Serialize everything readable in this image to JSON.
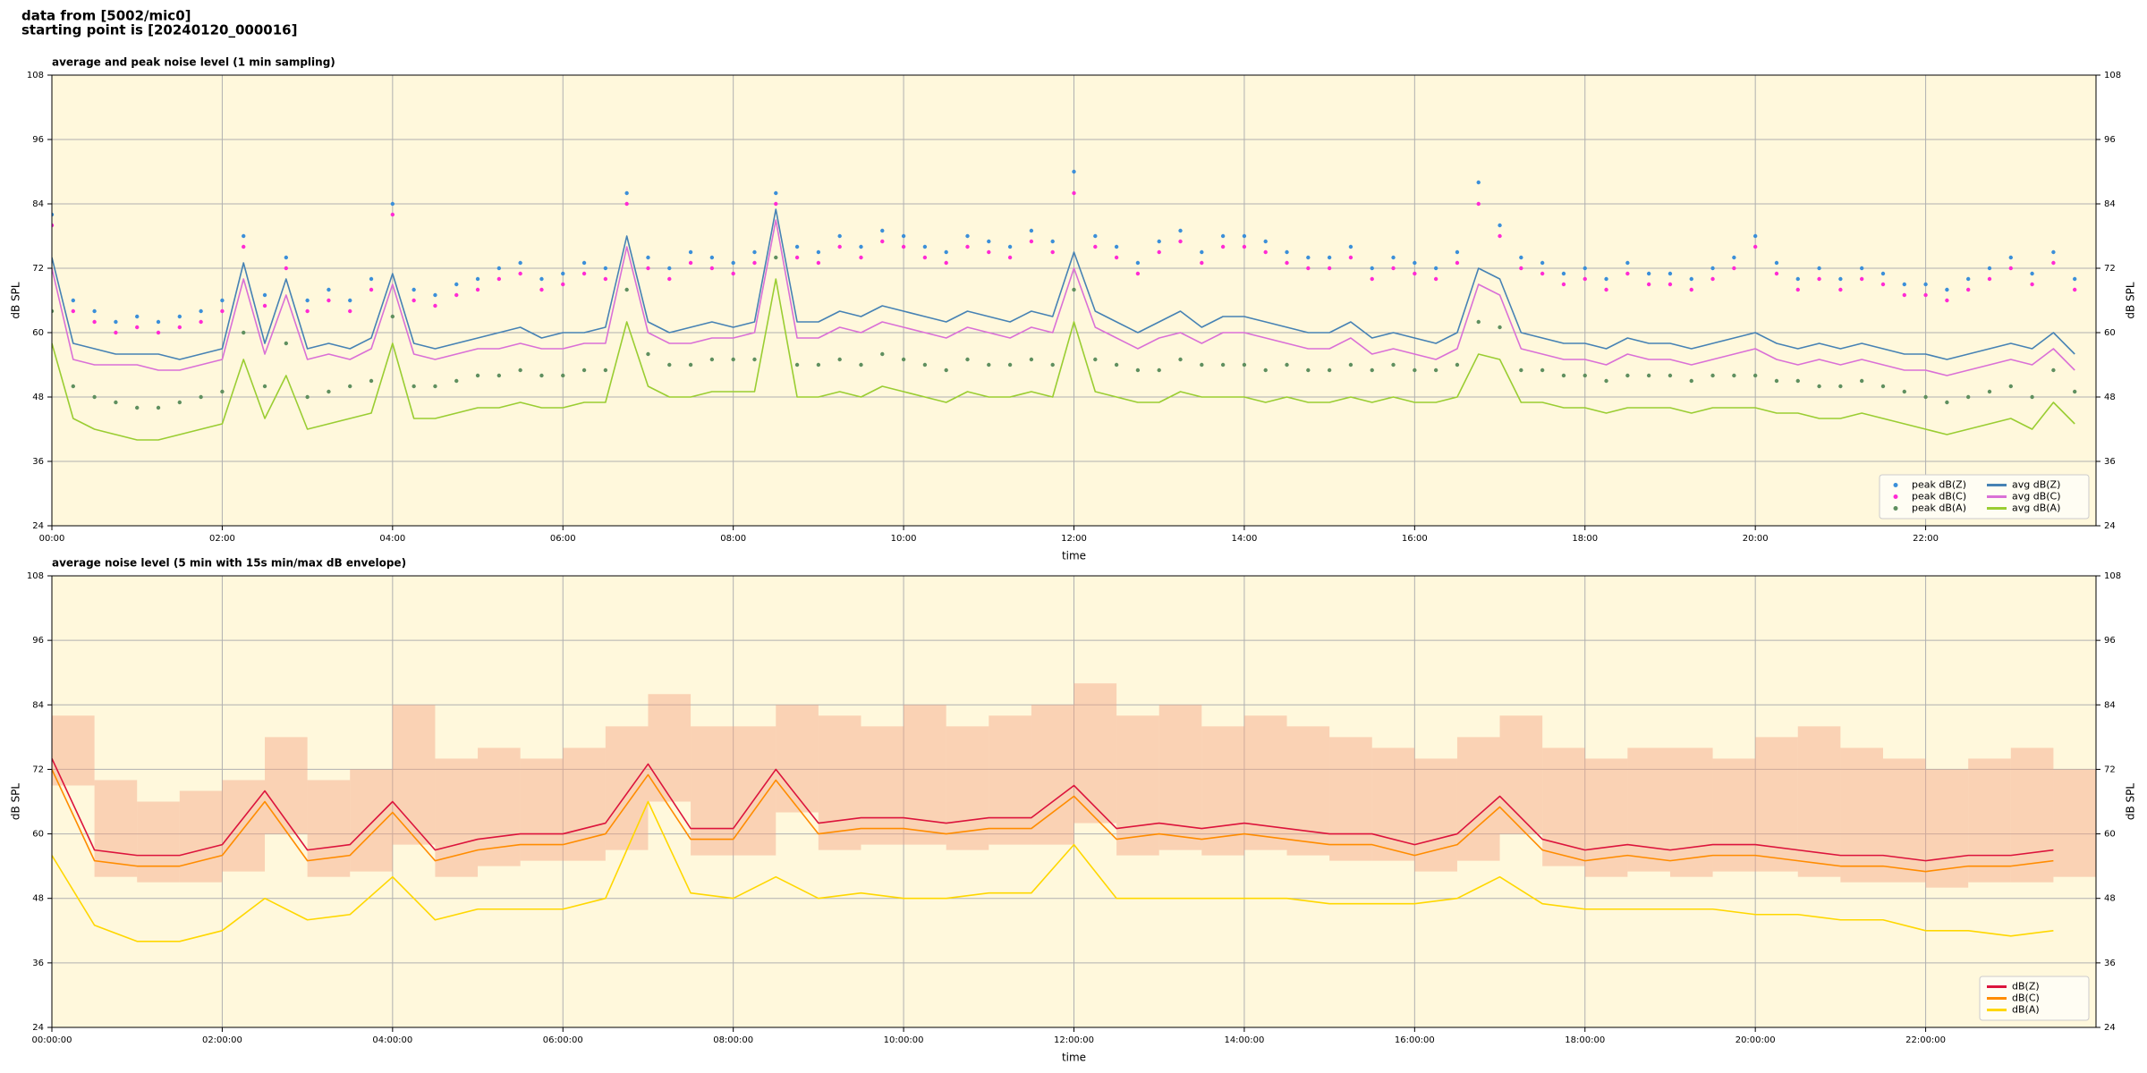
{
  "header": [
    "data from [5002/mic0]",
    "starting point is [20240120_000016]"
  ],
  "chart_data": [
    {
      "type": "line",
      "title": "average and peak noise level (1 min sampling)",
      "xlabel": "time",
      "ylabel": "dB SPL",
      "background": "#fff8dc",
      "grid": true,
      "legend": "lower right",
      "legend_columns": 2,
      "xlim": [
        0,
        24
      ],
      "ylim": [
        24,
        108
      ],
      "yticks": [
        24,
        36,
        48,
        60,
        72,
        84,
        96,
        108
      ],
      "xticks": [
        {
          "value": 0,
          "label": "00:00"
        },
        {
          "value": 2,
          "label": "02:00"
        },
        {
          "value": 4,
          "label": "04:00"
        },
        {
          "value": 6,
          "label": "06:00"
        },
        {
          "value": 8,
          "label": "08:00"
        },
        {
          "value": 10,
          "label": "10:00"
        },
        {
          "value": 12,
          "label": "12:00"
        },
        {
          "value": 14,
          "label": "14:00"
        },
        {
          "value": 16,
          "label": "16:00"
        },
        {
          "value": 18,
          "label": "18:00"
        },
        {
          "value": 20,
          "label": "20:00"
        },
        {
          "value": 22,
          "label": "22:00"
        }
      ],
      "x": [
        0,
        0.25,
        0.5,
        0.75,
        1,
        1.25,
        1.5,
        1.75,
        2,
        2.25,
        2.5,
        2.75,
        3,
        3.25,
        3.5,
        3.75,
        4,
        4.25,
        4.5,
        4.75,
        5,
        5.25,
        5.5,
        5.75,
        6,
        6.25,
        6.5,
        6.75,
        7,
        7.25,
        7.5,
        7.75,
        8,
        8.25,
        8.5,
        8.75,
        9,
        9.25,
        9.5,
        9.75,
        10,
        10.25,
        10.5,
        10.75,
        11,
        11.25,
        11.5,
        11.75,
        12,
        12.25,
        12.5,
        12.75,
        13,
        13.25,
        13.5,
        13.75,
        14,
        14.25,
        14.5,
        14.75,
        15,
        15.25,
        15.5,
        15.75,
        16,
        16.25,
        16.5,
        16.75,
        17,
        17.25,
        17.5,
        17.75,
        18,
        18.25,
        18.5,
        18.75,
        19,
        19.25,
        19.5,
        19.75,
        20,
        20.25,
        20.5,
        20.75,
        21,
        21.25,
        21.5,
        21.75,
        22,
        22.25,
        22.5,
        22.75,
        23,
        23.25,
        23.5,
        23.75
      ],
      "series": [
        {
          "name": "peak dB(Z)",
          "kind": "scatter",
          "color": "#3b8fd9",
          "values": [
            82,
            66,
            64,
            62,
            63,
            62,
            63,
            64,
            66,
            78,
            67,
            74,
            66,
            68,
            66,
            70,
            84,
            68,
            67,
            69,
            70,
            72,
            73,
            70,
            71,
            73,
            72,
            86,
            74,
            72,
            75,
            74,
            73,
            75,
            86,
            76,
            75,
            78,
            76,
            79,
            78,
            76,
            75,
            78,
            77,
            76,
            79,
            77,
            90,
            78,
            76,
            73,
            77,
            79,
            75,
            78,
            78,
            77,
            75,
            74,
            74,
            76,
            72,
            74,
            73,
            72,
            75,
            88,
            80,
            74,
            73,
            71,
            72,
            70,
            73,
            71,
            71,
            70,
            72,
            74,
            78,
            73,
            70,
            72,
            70,
            72,
            71,
            69,
            69,
            68,
            70,
            72,
            74,
            71,
            75,
            70
          ]
        },
        {
          "name": "peak dB(C)",
          "kind": "scatter",
          "color": "#ff2ad4",
          "values": [
            80,
            64,
            62,
            60,
            61,
            60,
            61,
            62,
            64,
            76,
            65,
            72,
            64,
            66,
            64,
            68,
            82,
            66,
            65,
            67,
            68,
            70,
            71,
            68,
            69,
            71,
            70,
            84,
            72,
            70,
            73,
            72,
            71,
            73,
            84,
            74,
            73,
            76,
            74,
            77,
            76,
            74,
            73,
            76,
            75,
            74,
            77,
            75,
            86,
            76,
            74,
            71,
            75,
            77,
            73,
            76,
            76,
            75,
            73,
            72,
            72,
            74,
            70,
            72,
            71,
            70,
            73,
            84,
            78,
            72,
            71,
            69,
            70,
            68,
            71,
            69,
            69,
            68,
            70,
            72,
            76,
            71,
            68,
            70,
            68,
            70,
            69,
            67,
            67,
            66,
            68,
            70,
            72,
            69,
            73,
            68
          ]
        },
        {
          "name": "peak dB(A)",
          "kind": "scatter",
          "color": "#5f8f5f",
          "values": [
            64,
            50,
            48,
            47,
            46,
            46,
            47,
            48,
            49,
            60,
            50,
            58,
            48,
            49,
            50,
            51,
            63,
            50,
            50,
            51,
            52,
            52,
            53,
            52,
            52,
            53,
            53,
            68,
            56,
            54,
            54,
            55,
            55,
            55,
            74,
            54,
            54,
            55,
            54,
            56,
            55,
            54,
            53,
            55,
            54,
            54,
            55,
            54,
            68,
            55,
            54,
            53,
            53,
            55,
            54,
            54,
            54,
            53,
            54,
            53,
            53,
            54,
            53,
            54,
            53,
            53,
            54,
            62,
            61,
            53,
            53,
            52,
            52,
            51,
            52,
            52,
            52,
            51,
            52,
            52,
            52,
            51,
            51,
            50,
            50,
            51,
            50,
            49,
            48,
            47,
            48,
            49,
            50,
            48,
            53,
            49
          ]
        },
        {
          "name": "avg dB(Z)",
          "kind": "line",
          "color": "#4682b4",
          "values": [
            74,
            58,
            57,
            56,
            56,
            56,
            55,
            56,
            57,
            73,
            58,
            70,
            57,
            58,
            57,
            59,
            71,
            58,
            57,
            58,
            59,
            60,
            61,
            59,
            60,
            60,
            61,
            78,
            62,
            60,
            61,
            62,
            61,
            62,
            83,
            62,
            62,
            64,
            63,
            65,
            64,
            63,
            62,
            64,
            63,
            62,
            64,
            63,
            75,
            64,
            62,
            60,
            62,
            64,
            61,
            63,
            63,
            62,
            61,
            60,
            60,
            62,
            59,
            60,
            59,
            58,
            60,
            72,
            70,
            60,
            59,
            58,
            58,
            57,
            59,
            58,
            58,
            57,
            58,
            59,
            60,
            58,
            57,
            58,
            57,
            58,
            57,
            56,
            56,
            55,
            56,
            57,
            58,
            57,
            60,
            56
          ]
        },
        {
          "name": "avg dB(C)",
          "kind": "line",
          "color": "#da70d6",
          "values": [
            72,
            55,
            54,
            54,
            54,
            53,
            53,
            54,
            55,
            70,
            56,
            67,
            55,
            56,
            55,
            57,
            69,
            56,
            55,
            56,
            57,
            57,
            58,
            57,
            57,
            58,
            58,
            76,
            60,
            58,
            58,
            59,
            59,
            60,
            81,
            59,
            59,
            61,
            60,
            62,
            61,
            60,
            59,
            61,
            60,
            59,
            61,
            60,
            72,
            61,
            59,
            57,
            59,
            60,
            58,
            60,
            60,
            59,
            58,
            57,
            57,
            59,
            56,
            57,
            56,
            55,
            57,
            69,
            67,
            57,
            56,
            55,
            55,
            54,
            56,
            55,
            55,
            54,
            55,
            56,
            57,
            55,
            54,
            55,
            54,
            55,
            54,
            53,
            53,
            52,
            53,
            54,
            55,
            54,
            57,
            53
          ]
        },
        {
          "name": "avg dB(A)",
          "kind": "line",
          "color": "#9acd32",
          "values": [
            58,
            44,
            42,
            41,
            40,
            40,
            41,
            42,
            43,
            55,
            44,
            52,
            42,
            43,
            44,
            45,
            58,
            44,
            44,
            45,
            46,
            46,
            47,
            46,
            46,
            47,
            47,
            62,
            50,
            48,
            48,
            49,
            49,
            49,
            70,
            48,
            48,
            49,
            48,
            50,
            49,
            48,
            47,
            49,
            48,
            48,
            49,
            48,
            62,
            49,
            48,
            47,
            47,
            49,
            48,
            48,
            48,
            47,
            48,
            47,
            47,
            48,
            47,
            48,
            47,
            47,
            48,
            56,
            55,
            47,
            47,
            46,
            46,
            45,
            46,
            46,
            46,
            45,
            46,
            46,
            46,
            45,
            45,
            44,
            44,
            45,
            44,
            43,
            42,
            41,
            42,
            43,
            44,
            42,
            47,
            43
          ]
        }
      ]
    },
    {
      "type": "line",
      "title": "average noise level (5 min with 15s min/max dB envelope)",
      "xlabel": "time",
      "ylabel": "dB SPL",
      "background": "#fff8dc",
      "grid": true,
      "legend": "lower right",
      "legend_columns": 1,
      "xlim": [
        0,
        24
      ],
      "ylim": [
        24,
        108
      ],
      "yticks": [
        24,
        36,
        48,
        60,
        72,
        84,
        96,
        108
      ],
      "xticks": [
        {
          "value": 0,
          "label": "00:00:00"
        },
        {
          "value": 2,
          "label": "02:00:00"
        },
        {
          "value": 4,
          "label": "04:00:00"
        },
        {
          "value": 6,
          "label": "06:00:00"
        },
        {
          "value": 8,
          "label": "08:00:00"
        },
        {
          "value": 10,
          "label": "10:00:00"
        },
        {
          "value": 12,
          "label": "12:00:00"
        },
        {
          "value": 14,
          "label": "14:00:00"
        },
        {
          "value": 16,
          "label": "16:00:00"
        },
        {
          "value": 18,
          "label": "18:00:00"
        },
        {
          "value": 20,
          "label": "20:00:00"
        },
        {
          "value": 22,
          "label": "22:00:00"
        }
      ],
      "x": [
        0,
        0.5,
        1,
        1.5,
        2,
        2.5,
        3,
        3.5,
        4,
        4.5,
        5,
        5.5,
        6,
        6.5,
        7,
        7.5,
        8,
        8.5,
        9,
        9.5,
        10,
        10.5,
        11,
        11.5,
        12,
        12.5,
        13,
        13.5,
        14,
        14.5,
        15,
        15.5,
        16,
        16.5,
        17,
        17.5,
        18,
        18.5,
        19,
        19.5,
        20,
        20.5,
        21,
        21.5,
        22,
        22.5,
        23,
        23.5
      ],
      "envelope": {
        "color": "#f4a582",
        "low": [
          69,
          52,
          51,
          51,
          53,
          60,
          52,
          53,
          58,
          52,
          54,
          55,
          55,
          57,
          66,
          56,
          56,
          64,
          57,
          58,
          58,
          57,
          58,
          58,
          62,
          56,
          57,
          56,
          57,
          56,
          55,
          55,
          53,
          55,
          60,
          54,
          52,
          53,
          52,
          53,
          53,
          52,
          51,
          51,
          50,
          51,
          51,
          52
        ],
        "high": [
          82,
          70,
          66,
          68,
          70,
          78,
          70,
          72,
          84,
          74,
          76,
          74,
          76,
          80,
          86,
          80,
          80,
          84,
          82,
          80,
          84,
          80,
          82,
          84,
          88,
          82,
          84,
          80,
          82,
          80,
          78,
          76,
          74,
          78,
          82,
          76,
          74,
          76,
          76,
          74,
          78,
          80,
          76,
          74,
          72,
          74,
          76,
          72
        ]
      },
      "series": [
        {
          "name": "dB(Z)",
          "kind": "line",
          "color": "#dc143c",
          "values": [
            74,
            57,
            56,
            56,
            58,
            68,
            57,
            58,
            66,
            57,
            59,
            60,
            60,
            62,
            73,
            61,
            61,
            72,
            62,
            63,
            63,
            62,
            63,
            63,
            69,
            61,
            62,
            61,
            62,
            61,
            60,
            60,
            58,
            60,
            67,
            59,
            57,
            58,
            57,
            58,
            58,
            57,
            56,
            56,
            55,
            56,
            56,
            57
          ]
        },
        {
          "name": "dB(C)",
          "kind": "line",
          "color": "#ff8c00",
          "values": [
            72,
            55,
            54,
            54,
            56,
            66,
            55,
            56,
            64,
            55,
            57,
            58,
            58,
            60,
            71,
            59,
            59,
            70,
            60,
            61,
            61,
            60,
            61,
            61,
            67,
            59,
            60,
            59,
            60,
            59,
            58,
            58,
            56,
            58,
            65,
            57,
            55,
            56,
            55,
            56,
            56,
            55,
            54,
            54,
            53,
            54,
            54,
            55
          ]
        },
        {
          "name": "dB(A)",
          "kind": "line",
          "color": "#ffd700",
          "values": [
            56,
            43,
            40,
            40,
            42,
            48,
            44,
            45,
            52,
            44,
            46,
            46,
            46,
            48,
            66,
            49,
            48,
            52,
            48,
            49,
            48,
            48,
            49,
            49,
            58,
            48,
            48,
            48,
            48,
            48,
            47,
            47,
            47,
            48,
            52,
            47,
            46,
            46,
            46,
            46,
            45,
            45,
            44,
            44,
            42,
            42,
            41,
            42
          ]
        }
      ]
    }
  ]
}
